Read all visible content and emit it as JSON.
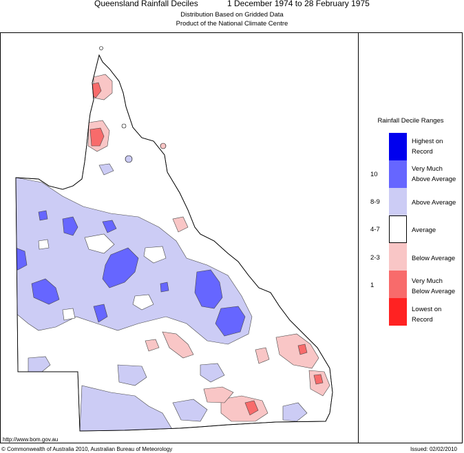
{
  "header": {
    "title": "Queensland Rainfall Deciles",
    "dates": "1 December 1974 to 28 February 1975",
    "subtitle1": "Distribution Based on Gridded Data",
    "subtitle2": "Product of the National Climate Centre"
  },
  "legend": {
    "title": "Rainfall Decile Ranges",
    "items": [
      {
        "range": "",
        "label_line1": "Highest on",
        "label_line2": "Record",
        "color": "#0000ee"
      },
      {
        "range": "10",
        "label_line1": "Very Much",
        "label_line2": "Above Average",
        "color": "#6666ff"
      },
      {
        "range": "8-9",
        "label_line1": "Above Average",
        "label_line2": "",
        "color": "#ccccf5"
      },
      {
        "range": "4-7",
        "label_line1": "Average",
        "label_line2": "",
        "color": "#ffffff"
      },
      {
        "range": "2-3",
        "label_line1": "Below Average",
        "label_line2": "",
        "color": "#f9c6c6"
      },
      {
        "range": "1",
        "label_line1": "Very Much",
        "label_line2": "Below Average",
        "color": "#f86b6b"
      },
      {
        "range": "",
        "label_line1": "Lowest on",
        "label_line2": "Record",
        "color": "#ff2222"
      }
    ]
  },
  "footer": {
    "url": "http://www.bom.gov.au",
    "copyright": "© Commonwealth of Australia 2010, Australian Bureau of Meteorology",
    "issued": "Issued: 02/02/2010"
  }
}
